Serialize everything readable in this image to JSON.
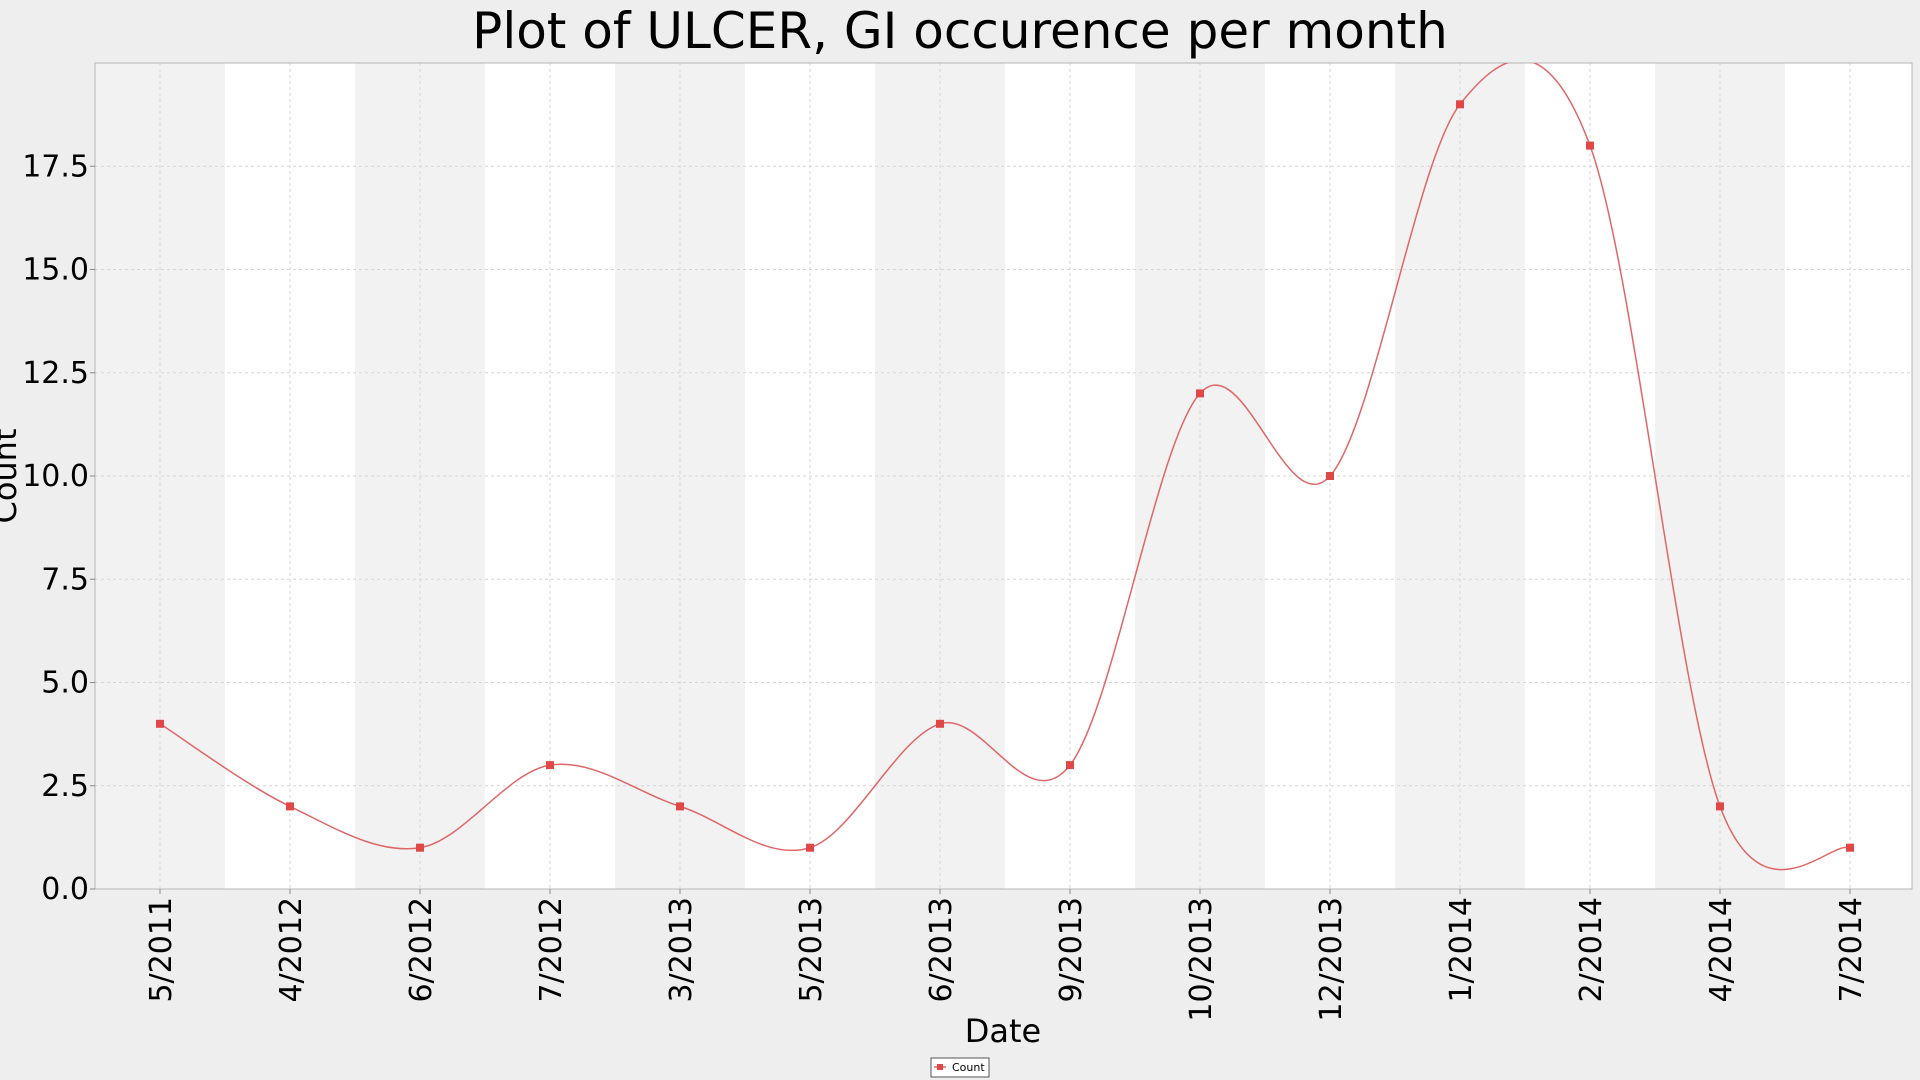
{
  "chart_data": {
    "type": "line",
    "title": "Plot of ULCER, GI occurence per month",
    "xlabel": "Date",
    "ylabel": "Count",
    "categories": [
      "5/2011",
      "4/2012",
      "6/2012",
      "7/2012",
      "3/2013",
      "5/2013",
      "6/2013",
      "9/2013",
      "10/2013",
      "12/2013",
      "1/2014",
      "2/2014",
      "4/2014",
      "7/2014"
    ],
    "series": [
      {
        "name": "Count",
        "values": [
          4,
          2,
          1,
          3,
          2,
          1,
          4,
          3,
          12,
          10,
          19,
          18,
          2,
          1
        ]
      }
    ],
    "ylim": [
      0,
      20
    ],
    "yticks": [
      "0.0",
      "2.5",
      "5.0",
      "7.5",
      "10.0",
      "12.5",
      "15.0",
      "17.5"
    ],
    "ytick_values": [
      0,
      2.5,
      5,
      7.5,
      10,
      12.5,
      15,
      17.5
    ],
    "grid": true,
    "smooth": true,
    "legend_position": "bottom-center",
    "colors": {
      "series": "#e06666",
      "marker": "#e04848",
      "band_dark": "#f2f2f2",
      "band_light": "#ffffff",
      "background": "#eeeeee",
      "grid": "#d6d6d6"
    }
  }
}
